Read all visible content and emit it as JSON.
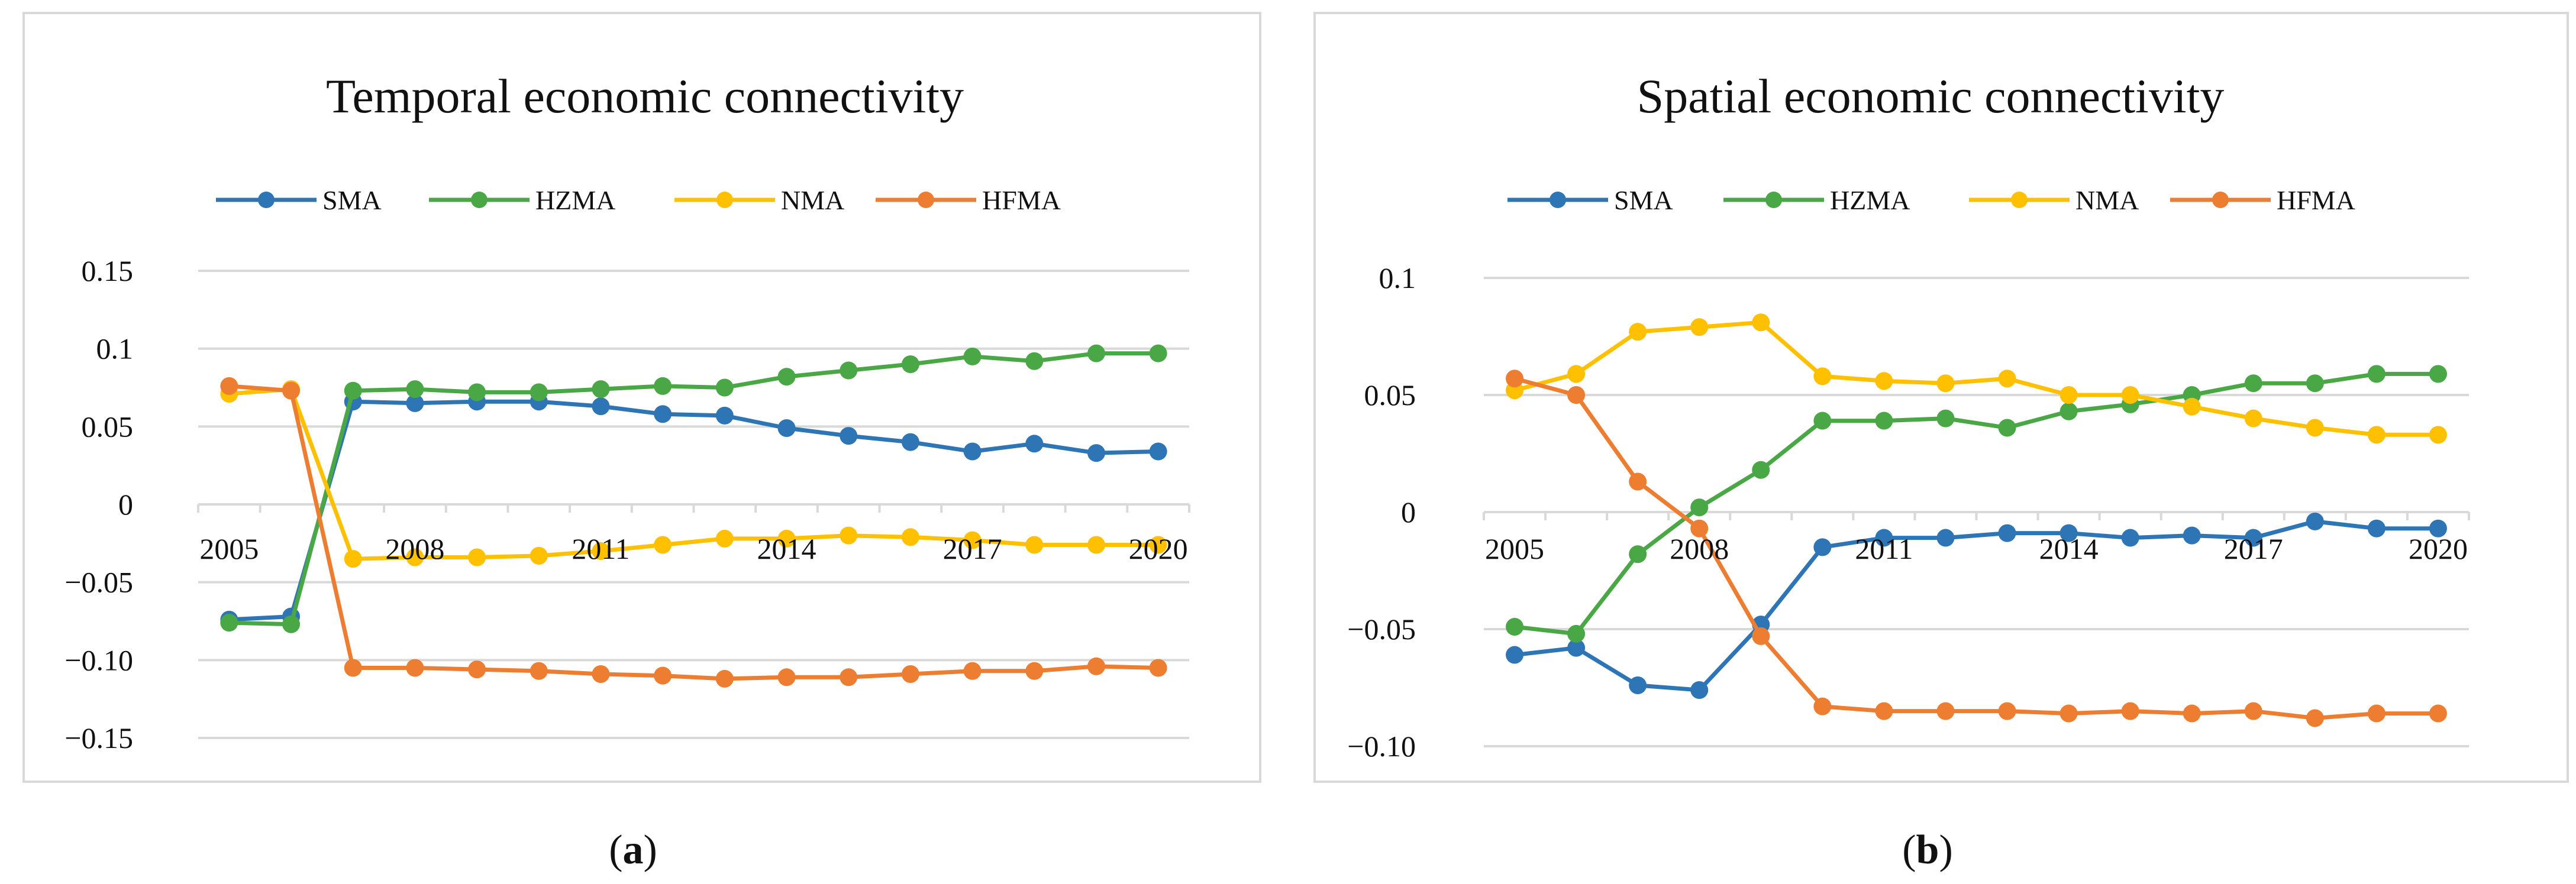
{
  "chart_data": [
    {
      "panel": "a",
      "caption_letter": "a",
      "type": "line",
      "title": "Temporal economic connectivity",
      "xlabel": "",
      "ylabel": "",
      "years": [
        2005,
        2006,
        2007,
        2008,
        2009,
        2010,
        2011,
        2012,
        2013,
        2014,
        2015,
        2016,
        2017,
        2018,
        2019,
        2020
      ],
      "x_tick_labels": [
        "2005",
        "2008",
        "2011",
        "2014",
        "2017",
        "2020"
      ],
      "y_tick_labels": [
        "0.15",
        "0.1",
        "0.05",
        "0",
        "−0.05",
        "−0.10",
        "−0.15"
      ],
      "y_tick_values": [
        0.15,
        0.1,
        0.05,
        0,
        -0.05,
        -0.1,
        -0.15
      ],
      "ylim": [
        -0.15,
        0.15
      ],
      "grid": true,
      "legend_position": "top",
      "series": [
        {
          "name": "SMA",
          "color": "#2e75b6",
          "values": [
            -0.074,
            -0.072,
            0.066,
            0.065,
            0.066,
            0.066,
            0.063,
            0.058,
            0.057,
            0.049,
            0.044,
            0.04,
            0.034,
            0.039,
            0.033,
            0.034
          ]
        },
        {
          "name": "HZMA",
          "color": "#4aa745",
          "values": [
            -0.076,
            -0.077,
            0.073,
            0.074,
            0.072,
            0.072,
            0.074,
            0.076,
            0.075,
            0.082,
            0.086,
            0.09,
            0.095,
            0.092,
            0.097,
            0.097
          ]
        },
        {
          "name": "NMA",
          "color": "#ffc000",
          "values": [
            0.071,
            0.074,
            -0.035,
            -0.034,
            -0.034,
            -0.033,
            -0.03,
            -0.026,
            -0.022,
            -0.022,
            -0.02,
            -0.021,
            -0.023,
            -0.026,
            -0.026,
            -0.026
          ]
        },
        {
          "name": "HFMA",
          "color": "#ed7d31",
          "values": [
            0.076,
            0.073,
            -0.105,
            -0.105,
            -0.106,
            -0.107,
            -0.109,
            -0.11,
            -0.112,
            -0.111,
            -0.111,
            -0.109,
            -0.107,
            -0.107,
            -0.104,
            -0.105
          ]
        }
      ]
    },
    {
      "panel": "b",
      "caption_letter": "b",
      "type": "line",
      "title": "Spatial economic connectivity",
      "xlabel": "",
      "ylabel": "",
      "years": [
        2005,
        2006,
        2007,
        2008,
        2009,
        2010,
        2011,
        2012,
        2013,
        2014,
        2015,
        2016,
        2017,
        2018,
        2019,
        2020
      ],
      "x_tick_labels": [
        "2005",
        "2008",
        "2011",
        "2014",
        "2017",
        "2020"
      ],
      "y_tick_labels": [
        "0.1",
        "0.05",
        "0",
        "−0.05",
        "−0.10"
      ],
      "y_tick_values": [
        0.1,
        0.05,
        0,
        -0.05,
        -0.1
      ],
      "ylim": [
        -0.1,
        0.1
      ],
      "grid": true,
      "legend_position": "top",
      "series": [
        {
          "name": "SMA",
          "color": "#2e75b6",
          "values": [
            -0.061,
            -0.058,
            -0.074,
            -0.076,
            -0.048,
            -0.015,
            -0.011,
            -0.011,
            -0.009,
            -0.009,
            -0.011,
            -0.01,
            -0.011,
            -0.004,
            -0.007,
            -0.007
          ]
        },
        {
          "name": "HZMA",
          "color": "#4aa745",
          "values": [
            -0.049,
            -0.052,
            -0.018,
            0.002,
            0.018,
            0.039,
            0.039,
            0.04,
            0.036,
            0.043,
            0.046,
            0.05,
            0.055,
            0.055,
            0.059,
            0.059
          ]
        },
        {
          "name": "NMA",
          "color": "#ffc000",
          "values": [
            0.052,
            0.059,
            0.077,
            0.079,
            0.081,
            0.058,
            0.056,
            0.055,
            0.057,
            0.05,
            0.05,
            0.045,
            0.04,
            0.036,
            0.033,
            0.033
          ]
        },
        {
          "name": "HFMA",
          "color": "#ed7d31",
          "values": [
            0.057,
            0.05,
            0.013,
            -0.007,
            -0.053,
            -0.083,
            -0.085,
            -0.085,
            -0.085,
            -0.086,
            -0.085,
            -0.086,
            -0.085,
            -0.088,
            -0.086,
            -0.086
          ]
        }
      ]
    }
  ]
}
